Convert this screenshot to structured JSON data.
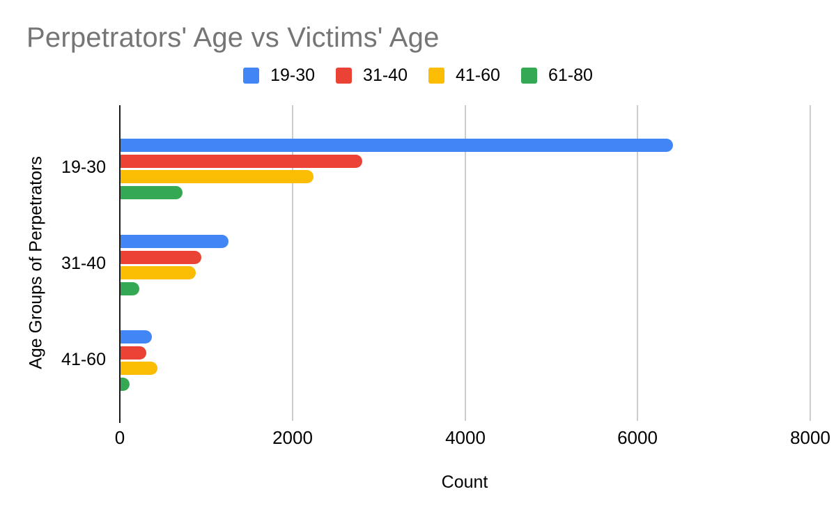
{
  "title": "Perpetrators' Age vs Victims' Age",
  "legend": {
    "items": [
      {
        "label": "19-30",
        "color": "#4285F4"
      },
      {
        "label": "31-40",
        "color": "#EA4335"
      },
      {
        "label": "41-60",
        "color": "#FBBC04"
      },
      {
        "label": "61-80",
        "color": "#34A853"
      }
    ]
  },
  "x_axis": {
    "title": "Count",
    "tick_labels": [
      "0",
      "2000",
      "4000",
      "6000",
      "8000"
    ]
  },
  "y_axis": {
    "title": "Age Groups of Perpetrators",
    "category_labels": [
      "19-30",
      "31-40",
      "41-60"
    ]
  },
  "colors": {
    "title_text": "#757575",
    "axis_text": "#000000",
    "gridline": "#cccccc",
    "baseline": "#1a1a1a",
    "background": "#ffffff"
  },
  "chart_data": {
    "type": "bar",
    "orientation": "horizontal",
    "title": "Perpetrators' Age vs Victims' Age",
    "categories": [
      "19-30",
      "31-40",
      "41-60"
    ],
    "series": [
      {
        "name": "19-30",
        "color": "#4285F4",
        "values": [
          6400,
          1250,
          365
        ]
      },
      {
        "name": "31-40",
        "color": "#EA4335",
        "values": [
          2800,
          940,
          295
        ]
      },
      {
        "name": "41-60",
        "color": "#FBBC04",
        "values": [
          2240,
          870,
          430
        ]
      },
      {
        "name": "61-80",
        "color": "#34A853",
        "values": [
          720,
          220,
          105
        ]
      }
    ],
    "xlabel": "Count",
    "ylabel": "Age Groups of Perpetrators",
    "xlim": [
      0,
      8000
    ],
    "x_ticks": [
      0,
      2000,
      4000,
      6000,
      8000
    ],
    "legend_position": "top",
    "grid": true
  }
}
